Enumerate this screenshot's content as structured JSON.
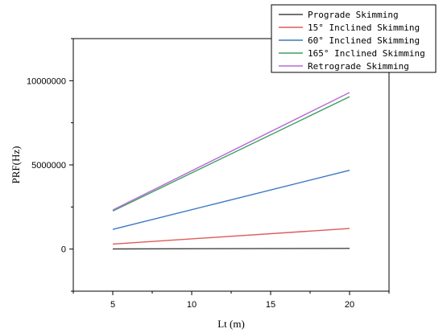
{
  "chart_data": {
    "type": "line",
    "title": "",
    "xlabel": "Lt (m)",
    "ylabel": "PRF(Hz)",
    "xlim": [
      2.5,
      22.5
    ],
    "ylim": [
      -2500000,
      12500000
    ],
    "x_ticks": [
      5,
      10,
      15,
      20
    ],
    "y_ticks": [
      0,
      5000000,
      10000000
    ],
    "x_tick_labels": [
      "5",
      "10",
      "15",
      "20"
    ],
    "y_tick_labels": [
      "0",
      "5000000",
      "10000000"
    ],
    "grid": false,
    "legend_position": "top-right",
    "series": [
      {
        "name": "Prograde Skimming",
        "color": "#444444",
        "x": [
          5,
          20
        ],
        "y": [
          10000,
          40000
        ]
      },
      {
        "name": "15° Inclined Skimming",
        "color": "#e05a5a",
        "x": [
          5,
          20
        ],
        "y": [
          300000,
          1220000
        ]
      },
      {
        "name": "60° Inclined Skimming",
        "color": "#3a78c0",
        "x": [
          5,
          20
        ],
        "y": [
          1170000,
          4680000
        ]
      },
      {
        "name": "165° Inclined Skimming",
        "color": "#3aa060",
        "x": [
          5,
          20
        ],
        "y": [
          2260000,
          9050000
        ]
      },
      {
        "name": "Retrograde Skimming",
        "color": "#b86ad8",
        "x": [
          5,
          20
        ],
        "y": [
          2320000,
          9300000
        ]
      }
    ]
  }
}
